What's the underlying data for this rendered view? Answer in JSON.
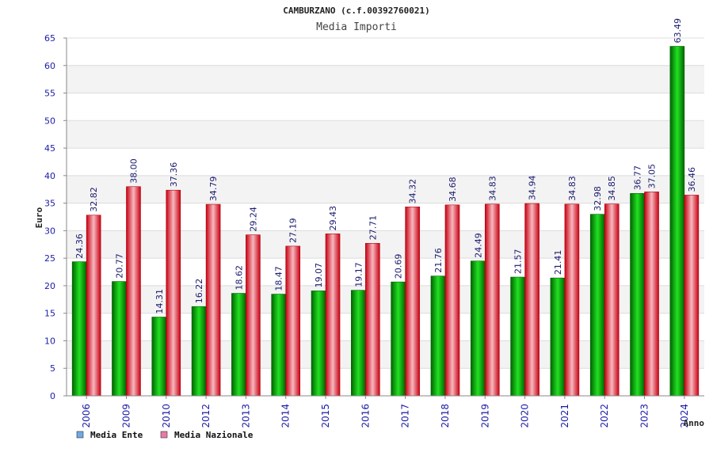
{
  "chart_data": {
    "type": "bar",
    "title": "CAMBURZANO (c.f.00392760021)",
    "subtitle": "Media Importi",
    "xlabel": "Anno",
    "ylabel": "Euro",
    "ylim": [
      0,
      65
    ],
    "yticks": [
      0,
      5,
      10,
      15,
      20,
      25,
      30,
      35,
      40,
      45,
      50,
      55,
      60,
      65
    ],
    "categories": [
      "2006",
      "2009",
      "2010",
      "2012",
      "2013",
      "2014",
      "2015",
      "2016",
      "2017",
      "2018",
      "2019",
      "2020",
      "2021",
      "2022",
      "2023",
      "2024"
    ],
    "series": [
      {
        "name": "Media Ente",
        "color": "#00b000",
        "values": [
          24.36,
          20.77,
          14.31,
          16.22,
          18.62,
          18.47,
          19.07,
          19.17,
          20.69,
          21.76,
          24.49,
          21.57,
          21.41,
          32.98,
          36.77,
          63.49
        ],
        "labels": [
          "24.36",
          "20.77",
          "14.31",
          "16.22",
          "18.62",
          "18.47",
          "19.07",
          "19.17",
          "20.69",
          "21.76",
          "24.49",
          "21.57",
          "21.41",
          "32.98",
          "36.77",
          "63.49"
        ]
      },
      {
        "name": "Media Nazionale",
        "color": "#e8101c",
        "values": [
          32.82,
          38.0,
          37.36,
          34.79,
          29.24,
          27.19,
          29.43,
          27.71,
          34.32,
          34.68,
          34.83,
          34.94,
          34.83,
          34.85,
          37.05,
          36.46
        ],
        "labels": [
          "32.82",
          "38.00",
          "37.36",
          "34.79",
          "29.24",
          "27.19",
          "29.43",
          "27.71",
          "34.32",
          "34.68",
          "34.83",
          "34.94",
          "34.83",
          "34.85",
          "37.05",
          "36.46"
        ]
      }
    ],
    "grid": true,
    "legend_position": "bottom-left",
    "legend_colors": [
      "#6fa8e8",
      "#e87aa6"
    ]
  }
}
